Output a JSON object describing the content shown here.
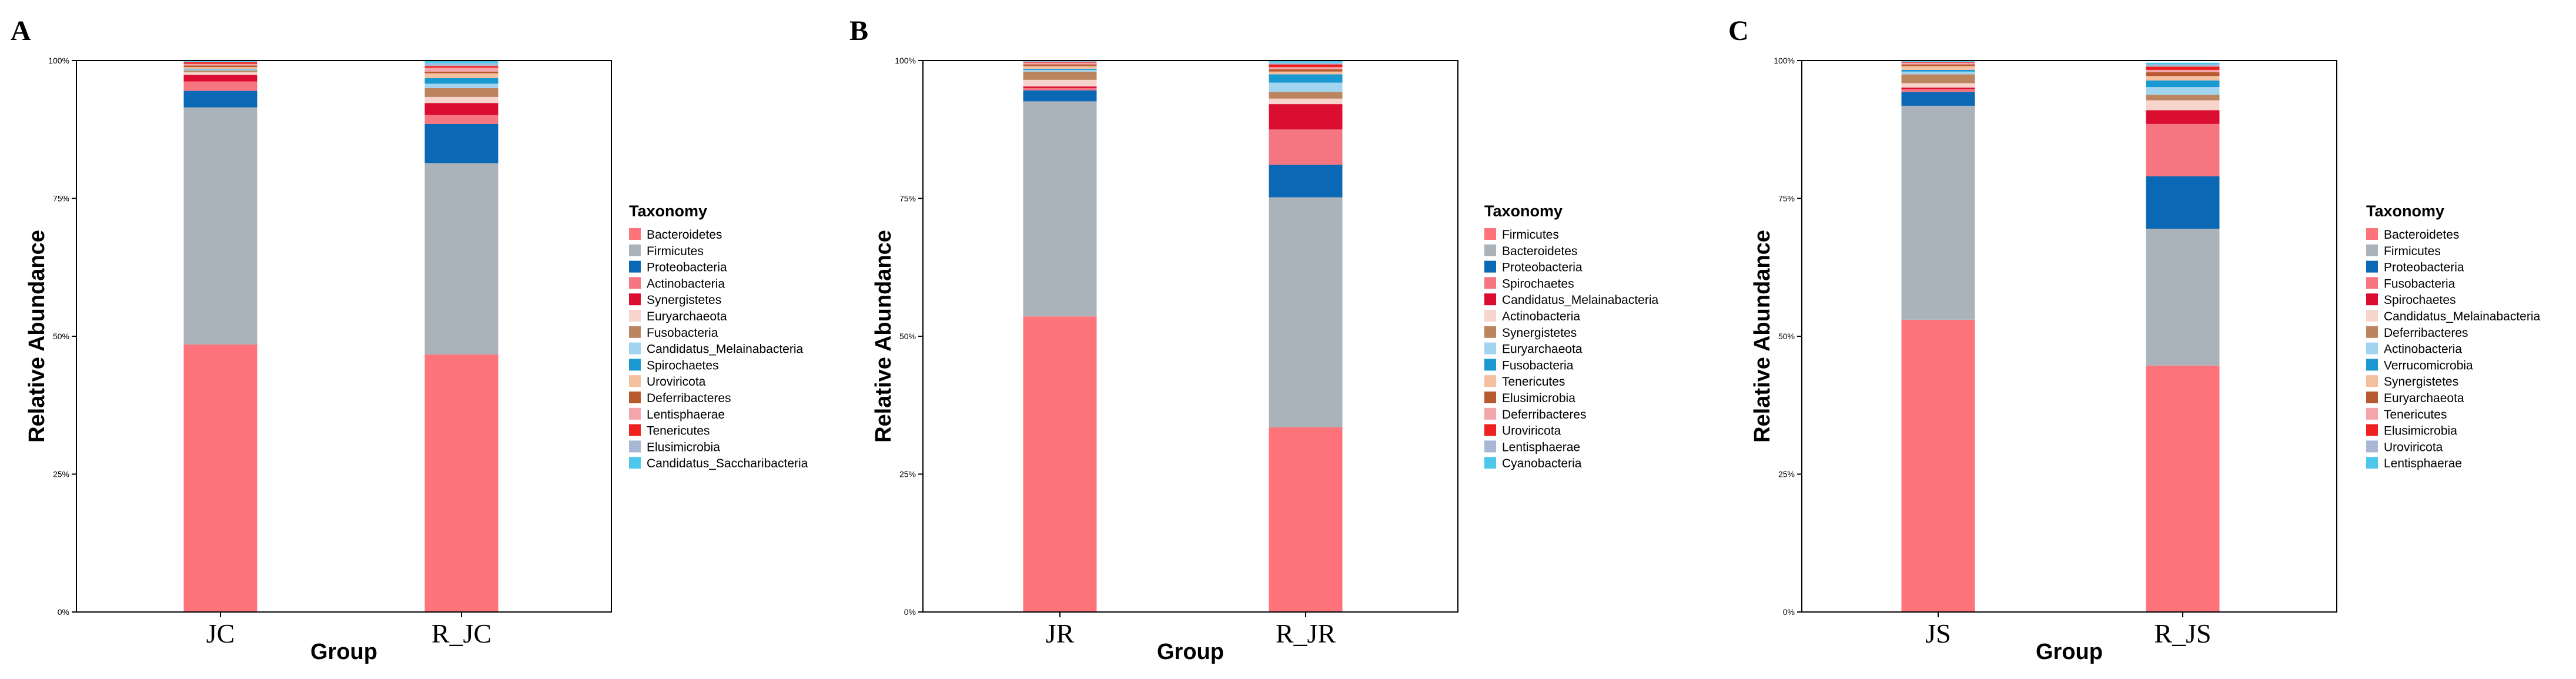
{
  "colors": {
    "palette": [
      "#FF737A",
      "#ABB3BA",
      "#0A68B5",
      "#F57580",
      "#DB0D30",
      "#F7D4CC",
      "#BC8560",
      "#A3D4EF",
      "#1A98D0",
      "#F5C0A0",
      "#B85A30",
      "#F4A5AA",
      "#EE2020",
      "#A8B8D4",
      "#4DC8EC"
    ]
  },
  "chart_data": [
    {
      "type": "bar",
      "stacked": true,
      "panel": "A",
      "xlabel": "Group",
      "ylabel": "Relative Abundance",
      "ylim": [
        0,
        100
      ],
      "yticks": [
        "0%",
        "25%",
        "50%",
        "75%",
        "100%"
      ],
      "categories": [
        "JC",
        "R_JC"
      ],
      "legend_title": "Taxonomy",
      "series": [
        {
          "name": "Bacteroidetes",
          "values": [
            48.5,
            46.7
          ]
        },
        {
          "name": "Firmicutes",
          "values": [
            43.0,
            34.7
          ]
        },
        {
          "name": "Proteobacteria",
          "values": [
            3.0,
            7.1
          ]
        },
        {
          "name": "Actinobacteria",
          "values": [
            1.7,
            1.6
          ]
        },
        {
          "name": "Synergistetes",
          "values": [
            1.2,
            2.2
          ]
        },
        {
          "name": "Euryarchaeota",
          "values": [
            0.5,
            1.1
          ]
        },
        {
          "name": "Fusobacteria",
          "values": [
            0.3,
            1.6
          ]
        },
        {
          "name": "Candidatus_Melainabacteria",
          "values": [
            0.2,
            0.8
          ]
        },
        {
          "name": "Spirochaetes",
          "values": [
            0.1,
            1.0
          ]
        },
        {
          "name": "Uroviricota",
          "values": [
            0.3,
            0.9
          ]
        },
        {
          "name": "Deferribacteres",
          "values": [
            0.3,
            0.3
          ]
        },
        {
          "name": "Lentisphaerae",
          "values": [
            0.3,
            0.7
          ]
        },
        {
          "name": "Tenericutes",
          "values": [
            0.3,
            0.3
          ]
        },
        {
          "name": "Elusimicrobia",
          "values": [
            0.1,
            0.5
          ]
        },
        {
          "name": "Candidatus_Saccharibacteria",
          "values": [
            0.2,
            0.5
          ]
        }
      ]
    },
    {
      "type": "bar",
      "stacked": true,
      "panel": "B",
      "xlabel": "Group",
      "ylabel": "Relative Abundance",
      "ylim": [
        0,
        100
      ],
      "yticks": [
        "0%",
        "25%",
        "50%",
        "75%",
        "100%"
      ],
      "categories": [
        "JR",
        "R_JR"
      ],
      "legend_title": "Taxonomy",
      "series": [
        {
          "name": "Firmicutes",
          "values": [
            53.6,
            33.5
          ]
        },
        {
          "name": "Bacteroidetes",
          "values": [
            39.0,
            41.7
          ]
        },
        {
          "name": "Proteobacteria",
          "values": [
            2.0,
            5.9
          ]
        },
        {
          "name": "Spirochaetes",
          "values": [
            0.4,
            6.4
          ]
        },
        {
          "name": "Candidatus_Melainabacteria",
          "values": [
            0.3,
            4.6
          ]
        },
        {
          "name": "Actinobacteria",
          "values": [
            1.2,
            1.0
          ]
        },
        {
          "name": "Synergistetes",
          "values": [
            1.5,
            1.2
          ]
        },
        {
          "name": "Euryarchaeota",
          "values": [
            0.3,
            1.7
          ]
        },
        {
          "name": "Fusobacteria",
          "values": [
            0.2,
            1.5
          ]
        },
        {
          "name": "Tenericutes",
          "values": [
            0.5,
            0.5
          ]
        },
        {
          "name": "Elusimicrobia",
          "values": [
            0.3,
            0.4
          ]
        },
        {
          "name": "Deferribacteres",
          "values": [
            0.3,
            0.4
          ]
        },
        {
          "name": "Uroviricota",
          "values": [
            0.1,
            0.5
          ]
        },
        {
          "name": "Lentisphaerae",
          "values": [
            0.2,
            0.3
          ]
        },
        {
          "name": "Cyanobacteria",
          "values": [
            0.1,
            0.4
          ]
        }
      ]
    },
    {
      "type": "bar",
      "stacked": true,
      "panel": "C",
      "xlabel": "Group",
      "ylabel": "Relative Abundance",
      "ylim": [
        0,
        100
      ],
      "yticks": [
        "0%",
        "25%",
        "50%",
        "75%",
        "100%"
      ],
      "categories": [
        "JS",
        "R_JS"
      ],
      "legend_title": "Taxonomy",
      "series": [
        {
          "name": "Bacteroidetes",
          "values": [
            53.0,
            44.7
          ]
        },
        {
          "name": "Firmicutes",
          "values": [
            38.8,
            24.8
          ]
        },
        {
          "name": "Proteobacteria",
          "values": [
            2.5,
            9.5
          ]
        },
        {
          "name": "Fusobacteria",
          "values": [
            0.5,
            9.5
          ]
        },
        {
          "name": "Spirochaetes",
          "values": [
            0.3,
            2.5
          ]
        },
        {
          "name": "Candidatus_Melainabacteria",
          "values": [
            0.8,
            1.8
          ]
        },
        {
          "name": "Deferribacteres",
          "values": [
            1.6,
            1.0
          ]
        },
        {
          "name": "Actinobacteria",
          "values": [
            0.5,
            1.4
          ]
        },
        {
          "name": "Verrucomicrobia",
          "values": [
            0.3,
            1.2
          ]
        },
        {
          "name": "Synergistetes",
          "values": [
            0.7,
            0.8
          ]
        },
        {
          "name": "Euryarchaeota",
          "values": [
            0.3,
            0.7
          ]
        },
        {
          "name": "Tenericutes",
          "values": [
            0.3,
            0.4
          ]
        },
        {
          "name": "Elusimicrobia",
          "values": [
            0.1,
            0.6
          ]
        },
        {
          "name": "Uroviricota",
          "values": [
            0.1,
            0.4
          ]
        },
        {
          "name": "Lentisphaerae",
          "values": [
            0.1,
            0.3
          ]
        }
      ]
    }
  ]
}
